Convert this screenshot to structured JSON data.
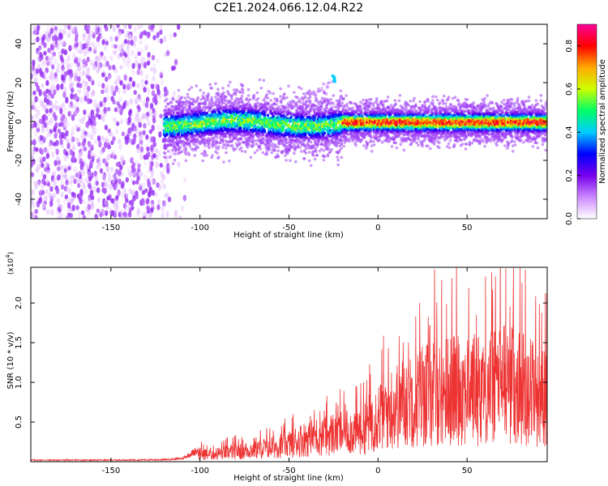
{
  "title": "C2E1.2024.066.12.04.R22",
  "chart_data": [
    {
      "type": "heatmap",
      "xlabel": "Height of straight line (km)",
      "ylabel": "Frequency (Hz)",
      "xlim": [
        -195,
        95
      ],
      "ylim": [
        -50,
        50
      ],
      "xticks": [
        -150,
        -100,
        -50,
        0,
        50
      ],
      "yticks": [
        -40,
        -20,
        0,
        20,
        40
      ],
      "colorbar": {
        "label": "Normalized spectral amplitude",
        "range": [
          0.0,
          0.9
        ],
        "ticks": [
          0.0,
          0.2,
          0.4,
          0.6,
          0.8
        ],
        "colormap": [
          "#ffffff",
          "#cc88ff",
          "#7700ee",
          "#0000ff",
          "#00ccff",
          "#00ff66",
          "#ccff00",
          "#ffaa00",
          "#ff0000",
          "#ff0099"
        ]
      },
      "regions": [
        {
          "description": "broadband noise",
          "x": [
            -195,
            -120
          ],
          "freq": [
            -50,
            50
          ],
          "amplitude": 0.1
        },
        {
          "description": "signal band",
          "x": [
            -120,
            95
          ],
          "freq_center": 0,
          "amplitude_range": [
            0.15,
            0.85
          ]
        }
      ],
      "annotations": [
        {
          "x": -25,
          "freq": 22,
          "amplitude": 0.4
        }
      ]
    },
    {
      "type": "line",
      "xlabel": "Height of straight line (km)",
      "ylabel": "SNR (10 * v/v)",
      "y_multiplier_label": "(x10",
      "y_multiplier_exp": "4",
      "y_multiplier_close": ")",
      "xlim": [
        -195,
        95
      ],
      "ylim": [
        0,
        24500
      ],
      "xticks": [
        -150,
        -100,
        -50,
        0,
        50
      ],
      "yticks": [
        5000,
        10000,
        15000,
        20000
      ],
      "yticklabels": [
        "0.5",
        "1.0",
        "1.5",
        "2.0"
      ],
      "color": "#ee3333",
      "series": [
        {
          "x": [
            -195,
            -150,
            -120,
            -110,
            -101,
            -95,
            -80,
            -70,
            -60,
            -50,
            -40,
            -30,
            -20,
            -10,
            0,
            10,
            20,
            30,
            40,
            50,
            60,
            70,
            80,
            90,
            95
          ],
          "values": [
            200,
            200,
            250,
            400,
            1500,
            1200,
            1800,
            2000,
            2500,
            3000,
            4000,
            4500,
            5000,
            5500,
            8000,
            9500,
            11000,
            12000,
            12500,
            12500,
            13000,
            14000,
            13500,
            12000,
            11500
          ]
        }
      ]
    }
  ]
}
